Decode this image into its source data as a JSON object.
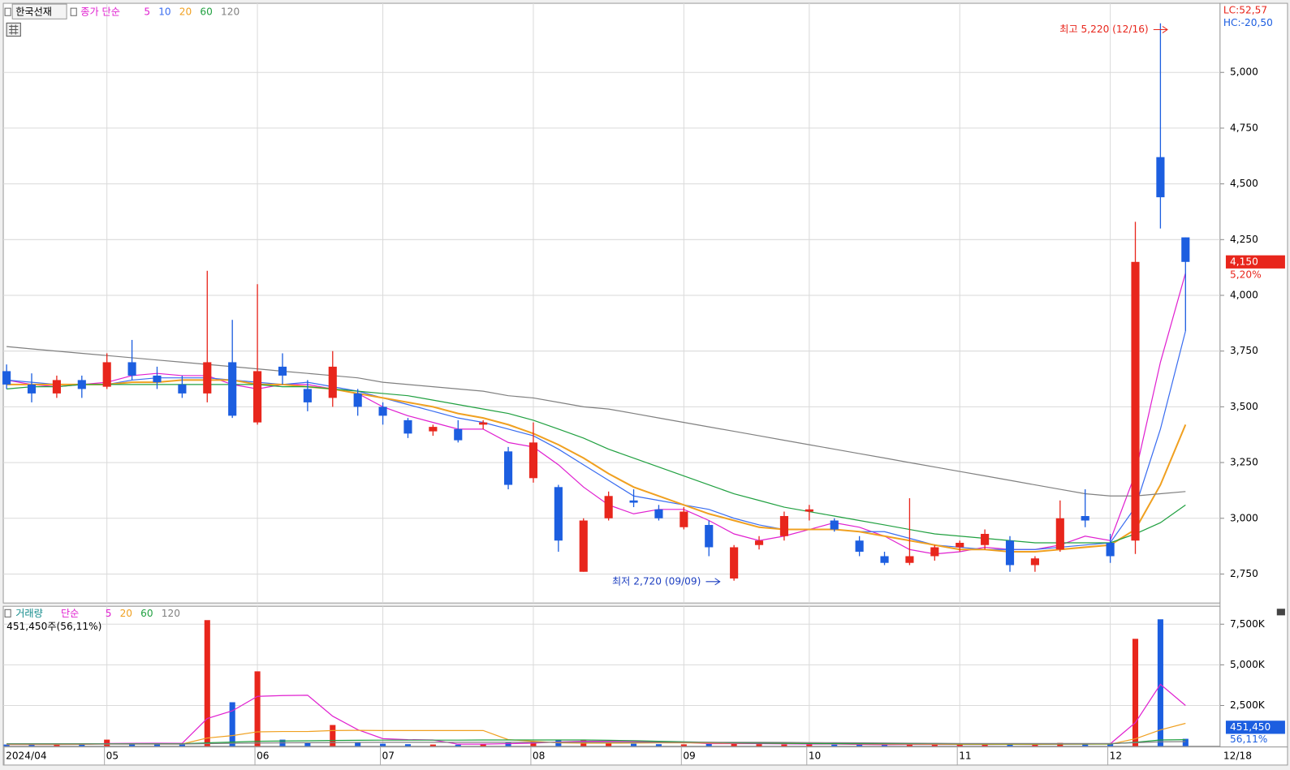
{
  "chart_data": {
    "type": "candlestick",
    "title": "한국선재",
    "ma_label": "종가 단순",
    "lc_label": "LC:52,57",
    "hc_label": "HC:-20,50",
    "up_color": "#e8261c",
    "down_color": "#1c5ee0",
    "annotations": [
      "최고 5,220 (12/16)",
      "최저 2,720 (09/09)"
    ],
    "open": [
      3660,
      3600,
      3560,
      3620,
      3590,
      3700,
      3640,
      3600,
      3560,
      3700,
      3430,
      3680,
      3580,
      3540,
      3560,
      3500,
      3440,
      3390,
      3400,
      3420,
      3300,
      3180,
      3140,
      2760,
      3000,
      3080,
      3040,
      2960,
      2970,
      2730,
      2880,
      2920,
      3030,
      2990,
      2900,
      2830,
      2800,
      2830,
      2870,
      2880,
      2900,
      2790,
      2860,
      3010,
      2890,
      2900,
      4620,
      4260
    ],
    "high": [
      3690,
      3650,
      3640,
      3640,
      3740,
      3800,
      3680,
      3640,
      4110,
      3890,
      4050,
      3740,
      3620,
      3750,
      3580,
      3520,
      3450,
      3420,
      3440,
      3440,
      3320,
      3430,
      3150,
      3000,
      3120,
      3130,
      3060,
      3050,
      2990,
      2880,
      2920,
      3030,
      3060,
      3000,
      2920,
      2850,
      3090,
      2880,
      2900,
      2950,
      2920,
      2830,
      3080,
      3130,
      2930,
      4330,
      5220,
      4260
    ],
    "low": [
      3580,
      3520,
      3540,
      3540,
      3580,
      3620,
      3580,
      3540,
      3520,
      3450,
      3420,
      3600,
      3480,
      3500,
      3460,
      3420,
      3360,
      3370,
      3340,
      3400,
      3130,
      3160,
      2850,
      2760,
      2990,
      3050,
      2990,
      2950,
      2830,
      2720,
      2860,
      2900,
      2990,
      2940,
      2830,
      2790,
      2790,
      2810,
      2850,
      2860,
      2760,
      2760,
      2850,
      2960,
      2800,
      2840,
      4300,
      3840
    ],
    "close": [
      3600,
      3560,
      3620,
      3580,
      3700,
      3640,
      3610,
      3560,
      3700,
      3460,
      3660,
      3640,
      3520,
      3680,
      3500,
      3460,
      3380,
      3410,
      3350,
      3430,
      3150,
      3340,
      2900,
      2990,
      3100,
      3070,
      3000,
      3030,
      2870,
      2870,
      2900,
      3010,
      3040,
      2950,
      2850,
      2800,
      2830,
      2870,
      2890,
      2930,
      2790,
      2820,
      3000,
      2990,
      2830,
      4150,
      4440,
      4150
    ],
    "moving_averages": [
      {
        "name": "5",
        "color": "#e020d0",
        "values": [
          3620,
          3600,
          3590,
          3600,
          3610,
          3640,
          3650,
          3640,
          3640,
          3600,
          3580,
          3600,
          3600,
          3580,
          3560,
          3500,
          3460,
          3430,
          3400,
          3400,
          3340,
          3320,
          3240,
          3140,
          3060,
          3020,
          3040,
          3040,
          2990,
          2930,
          2900,
          2920,
          2950,
          2980,
          2960,
          2920,
          2860,
          2840,
          2850,
          2870,
          2860,
          2860,
          2880,
          2920,
          2900,
          3200,
          3700,
          4100
        ]
      },
      {
        "name": "10",
        "color": "#3a6df0",
        "values": [
          3620,
          3610,
          3600,
          3600,
          3600,
          3620,
          3630,
          3630,
          3630,
          3620,
          3610,
          3600,
          3610,
          3590,
          3570,
          3540,
          3510,
          3480,
          3450,
          3430,
          3400,
          3370,
          3310,
          3240,
          3170,
          3100,
          3080,
          3060,
          3040,
          3000,
          2970,
          2950,
          2950,
          2950,
          2940,
          2940,
          2910,
          2880,
          2870,
          2860,
          2860,
          2860,
          2870,
          2880,
          2890,
          3050,
          3400,
          3840
        ]
      },
      {
        "name": "20",
        "color": "#f0a020",
        "values": [
          3600,
          3600,
          3600,
          3600,
          3600,
          3610,
          3610,
          3620,
          3620,
          3620,
          3600,
          3600,
          3590,
          3580,
          3560,
          3540,
          3520,
          3500,
          3470,
          3450,
          3420,
          3380,
          3330,
          3270,
          3200,
          3140,
          3100,
          3060,
          3020,
          2990,
          2960,
          2950,
          2950,
          2950,
          2940,
          2920,
          2900,
          2880,
          2860,
          2860,
          2850,
          2850,
          2860,
          2870,
          2880,
          2950,
          3150,
          3420
        ]
      },
      {
        "name": "60",
        "color": "#20a040",
        "values": [
          3580,
          3590,
          3590,
          3600,
          3600,
          3600,
          3600,
          3600,
          3600,
          3600,
          3600,
          3590,
          3590,
          3580,
          3570,
          3560,
          3550,
          3530,
          3510,
          3490,
          3470,
          3440,
          3400,
          3360,
          3310,
          3270,
          3230,
          3190,
          3150,
          3110,
          3080,
          3050,
          3030,
          3010,
          2990,
          2970,
          2950,
          2930,
          2920,
          2910,
          2900,
          2890,
          2890,
          2890,
          2890,
          2930,
          2980,
          3060
        ]
      },
      {
        "name": "120",
        "color": "#808080",
        "values": [
          3770,
          3760,
          3750,
          3740,
          3730,
          3720,
          3710,
          3700,
          3690,
          3680,
          3670,
          3660,
          3650,
          3640,
          3630,
          3610,
          3600,
          3590,
          3580,
          3570,
          3550,
          3540,
          3520,
          3500,
          3490,
          3470,
          3450,
          3430,
          3410,
          3390,
          3370,
          3350,
          3330,
          3310,
          3290,
          3270,
          3250,
          3230,
          3210,
          3190,
          3170,
          3150,
          3130,
          3110,
          3100,
          3100,
          3110,
          3120
        ]
      }
    ],
    "ylim": [
      2620,
      5310
    ],
    "yticks": [
      {
        "value": 2750,
        "label": "2,750"
      },
      {
        "value": 3000,
        "label": "3,000"
      },
      {
        "value": 3250,
        "label": "3,250"
      },
      {
        "value": 3500,
        "label": "3,500"
      },
      {
        "value": 3750,
        "label": "3,750"
      },
      {
        "value": 4000,
        "label": "4,000"
      },
      {
        "value": 4250,
        "label": "4,250"
      },
      {
        "value": 4500,
        "label": "4,500"
      },
      {
        "value": 4750,
        "label": "4,750"
      },
      {
        "value": 5000,
        "label": "5,000"
      }
    ],
    "current_price": {
      "value": 4150,
      "label": "4,150"
    },
    "change_label": "5,20%",
    "xticks": [
      {
        "value": 0,
        "label": "2024/04"
      },
      {
        "value": 4,
        "label": "05"
      },
      {
        "value": 10,
        "label": "06"
      },
      {
        "value": 15,
        "label": "07"
      },
      {
        "value": 21,
        "label": "08"
      },
      {
        "value": 27,
        "label": "09"
      },
      {
        "value": 32,
        "label": "10"
      },
      {
        "value": 38,
        "label": "11"
      },
      {
        "value": 44,
        "label": "12"
      }
    ],
    "last_date": "12/18",
    "grid": true,
    "volume": {
      "title": "거래량",
      "ma_label": "단순",
      "info": "451,450주(56,11%)",
      "values": [
        100000,
        80000,
        120000,
        90000,
        400000,
        150000,
        120000,
        100000,
        7750000,
        2700000,
        4600000,
        400000,
        200000,
        1300000,
        250000,
        150000,
        120000,
        100000,
        90000,
        150000,
        250000,
        300000,
        400000,
        350000,
        200000,
        150000,
        120000,
        110000,
        150000,
        200000,
        120000,
        100000,
        100000,
        90000,
        80000,
        90000,
        150000,
        90000,
        100000,
        90000,
        120000,
        80000,
        200000,
        150000,
        150000,
        6600000,
        7800000,
        451450
      ],
      "ma": [
        {
          "name": "5",
          "color": "#e020d0",
          "values": [
            100000,
            100000,
            100000,
            110000,
            160000,
            170000,
            180000,
            170000,
            1700000,
            2170000,
            3060000,
            3110000,
            3130000,
            1840000,
            1010000,
            460000,
            400000,
            380000,
            120000,
            120000,
            150000,
            180000,
            260000,
            300000,
            300000,
            290000,
            280000,
            230000,
            150000,
            150000,
            150000,
            140000,
            130000,
            130000,
            100000,
            90000,
            100000,
            100000,
            100000,
            100000,
            110000,
            100000,
            120000,
            130000,
            140000,
            1440000,
            3800000,
            2500000
          ]
        },
        {
          "name": "20",
          "color": "#f0a020",
          "values": [
            100000,
            100000,
            100000,
            110000,
            130000,
            130000,
            130000,
            130000,
            500000,
            650000,
            880000,
            900000,
            900000,
            960000,
            970000,
            960000,
            960000,
            960000,
            960000,
            960000,
            400000,
            300000,
            200000,
            180000,
            180000,
            190000,
            200000,
            200000,
            190000,
            180000,
            180000,
            170000,
            160000,
            150000,
            140000,
            130000,
            130000,
            120000,
            110000,
            110000,
            110000,
            110000,
            120000,
            120000,
            120000,
            450000,
            1000000,
            1400000
          ]
        },
        {
          "name": "60",
          "color": "#20a040",
          "values": [
            150000,
            150000,
            150000,
            150000,
            150000,
            150000,
            150000,
            150000,
            200000,
            250000,
            300000,
            320000,
            330000,
            350000,
            360000,
            370000,
            370000,
            370000,
            370000,
            380000,
            380000,
            380000,
            380000,
            380000,
            360000,
            340000,
            300000,
            270000,
            240000,
            200000,
            180000,
            170000,
            160000,
            150000,
            150000,
            150000,
            150000,
            150000,
            140000,
            140000,
            140000,
            140000,
            140000,
            140000,
            140000,
            240000,
            380000,
            400000
          ]
        },
        {
          "name": "120",
          "color": "#808080",
          "values": [
            130000,
            130000,
            130000,
            130000,
            130000,
            130000,
            130000,
            130000,
            150000,
            170000,
            190000,
            200000,
            210000,
            220000,
            230000,
            240000,
            240000,
            240000,
            240000,
            240000,
            240000,
            240000,
            240000,
            240000,
            240000,
            240000,
            240000,
            240000,
            240000,
            240000,
            240000,
            230000,
            220000,
            210000,
            200000,
            190000,
            180000,
            170000,
            160000,
            160000,
            160000,
            160000,
            160000,
            160000,
            160000,
            210000,
            270000,
            280000
          ]
        }
      ],
      "ylim": [
        0,
        8600000
      ],
      "yticks": [
        {
          "value": 2500000,
          "label": "2,500K"
        },
        {
          "value": 5000000,
          "label": "5,000K"
        },
        {
          "value": 7500000,
          "label": "7,500K"
        }
      ],
      "current": {
        "value": 451450,
        "label": "451,450"
      },
      "ratio_label": "56,11%"
    }
  }
}
